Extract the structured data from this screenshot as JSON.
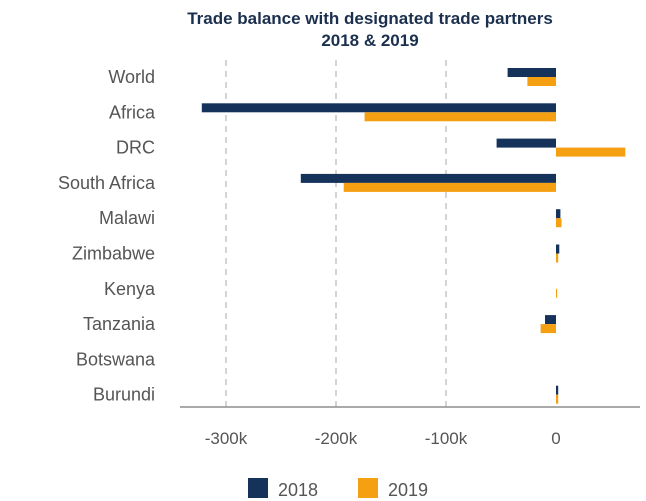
{
  "chart_data": {
    "type": "bar",
    "orientation": "horizontal",
    "title": "Trade balance with designated trade partners",
    "subtitle": "2018 & 2019",
    "categories": [
      "World",
      "Africa",
      "DRC",
      "South Africa",
      "Malawi",
      "Zimbabwe",
      "Kenya",
      "Tanzania",
      "Botswana",
      "Burundi"
    ],
    "series": [
      {
        "name": "2018",
        "color": "#14325a",
        "values": [
          -44000,
          -322000,
          -54000,
          -232000,
          4000,
          3000,
          0,
          -10000,
          0,
          2000
        ]
      },
      {
        "name": "2019",
        "color": "#f5a012",
        "values": [
          -26000,
          -174000,
          63000,
          -193000,
          5000,
          2000,
          1000,
          -14000,
          0,
          2000
        ]
      }
    ],
    "xlim": [
      -340000,
      75000
    ],
    "xticks": [
      -300000,
      -200000,
      -100000,
      0
    ],
    "xtick_labels": [
      "-300k",
      "-200k",
      "-100k",
      "0"
    ],
    "gridlines": "vertical-dashed",
    "legend_position": "bottom-center"
  }
}
